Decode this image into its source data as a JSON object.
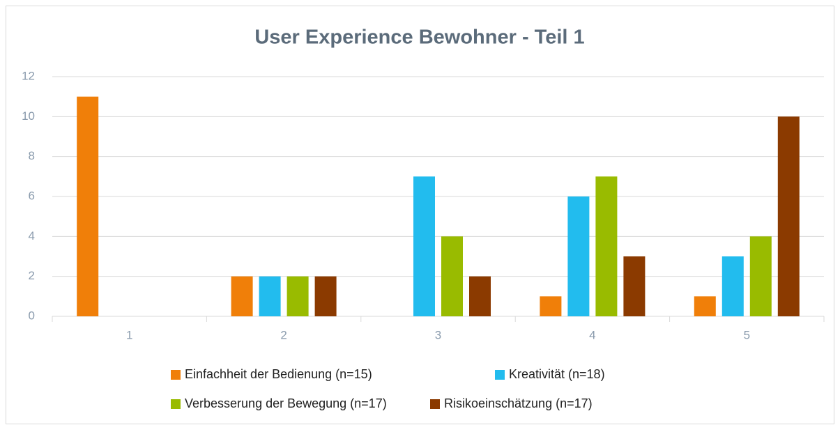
{
  "chart_data": {
    "type": "bar",
    "title": "User Experience Bewohner - Teil 1",
    "categories": [
      "1",
      "2",
      "3",
      "4",
      "5"
    ],
    "series": [
      {
        "name": "Einfachheit der Bedienung (n=15)",
        "color": "#f07f09",
        "values": [
          11,
          2,
          0,
          1,
          1
        ]
      },
      {
        "name": "Kreativität (n=18)",
        "color": "#22bcee",
        "values": [
          0,
          2,
          7,
          6,
          3
        ]
      },
      {
        "name": "Verbesserung der Bewegung (n=17)",
        "color": "#99bb00",
        "values": [
          0,
          2,
          4,
          7,
          4
        ]
      },
      {
        "name": "Risikoeinschätzung (n=17)",
        "color": "#8b3a00",
        "values": [
          0,
          2,
          2,
          3,
          10
        ]
      }
    ],
    "ylim": [
      0,
      12
    ],
    "yticks": [
      0,
      2,
      4,
      6,
      8,
      10,
      12
    ],
    "grid": true,
    "legend": "bottom"
  }
}
